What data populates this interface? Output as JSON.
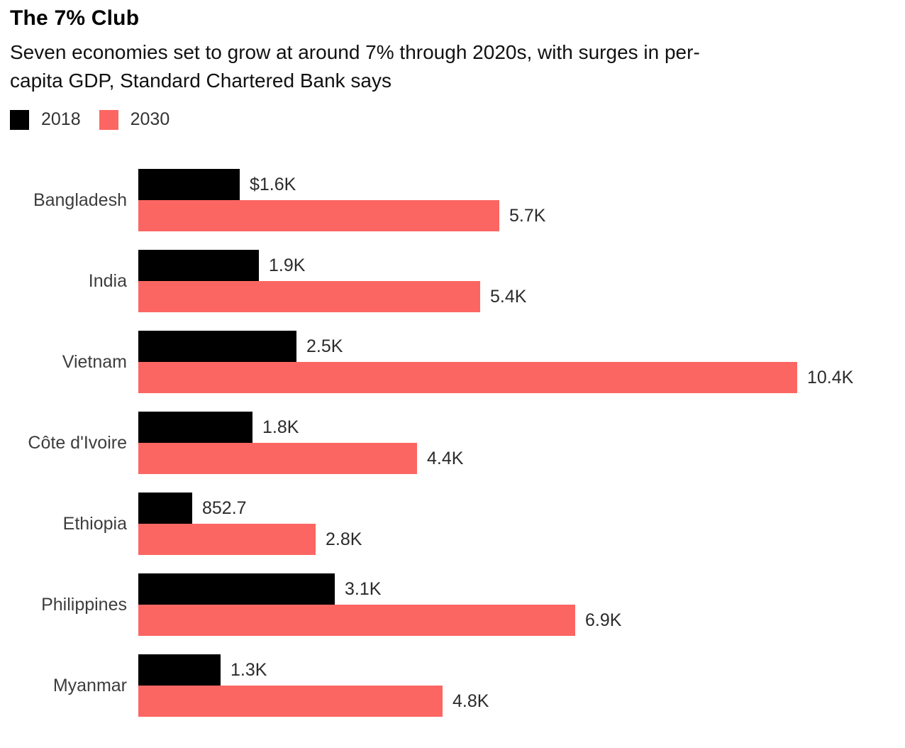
{
  "header": {
    "title": "The 7% Club",
    "subtitle_lines": [
      "Seven economies set to grow at around 7% through 2020s, with surges in per-",
      "capita GDP, Standard Chartered Bank says"
    ]
  },
  "legend": [
    {
      "label": "2018",
      "color": "#000000"
    },
    {
      "label": "2030",
      "color": "#FC6662"
    }
  ],
  "chart_data": {
    "type": "bar",
    "orientation": "horizontal",
    "title": "The 7% Club",
    "categories": [
      "Bangladesh",
      "India",
      "Vietnam",
      "Côte d'Ivoire",
      "Ethiopia",
      "Philippines",
      "Myanmar"
    ],
    "series": [
      {
        "name": "2018",
        "color": "#000000",
        "values": [
          1.6,
          1.9,
          2.5,
          1.8,
          0.8527,
          3.1,
          1.3
        ],
        "value_labels": [
          "$1.6K",
          "1.9K",
          "2.5K",
          "1.8K",
          "852.7",
          "3.1K",
          "1.3K"
        ]
      },
      {
        "name": "2030",
        "color": "#FC6662",
        "values": [
          5.7,
          5.4,
          10.4,
          4.4,
          2.8,
          6.9,
          4.8
        ],
        "value_labels": [
          "5.7K",
          "5.4K",
          "10.4K",
          "4.4K",
          "2.8K",
          "6.9K",
          "4.8K"
        ]
      }
    ],
    "xlim": [
      0,
      10.4
    ],
    "grid": false,
    "axis_lines": false,
    "legend_position": "top-left"
  }
}
